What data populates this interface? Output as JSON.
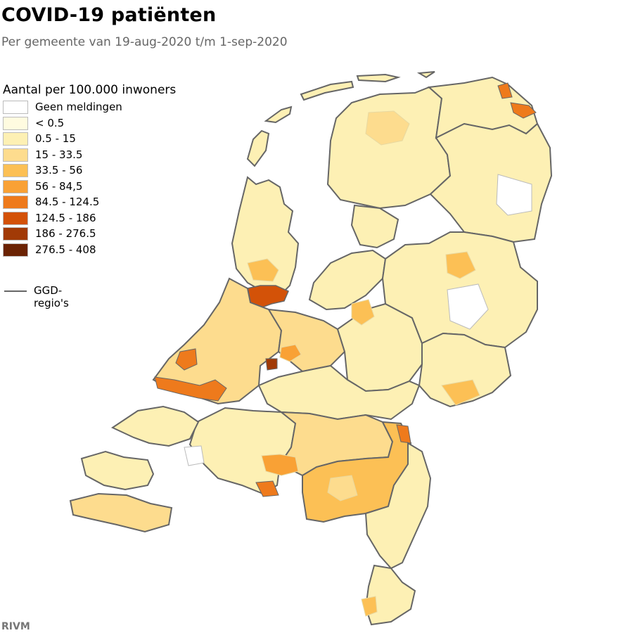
{
  "header": {
    "title": "COVID-19 patiënten",
    "subtitle": "Per gemeente van 19-aug-2020 t/m 1-sep-2020"
  },
  "legend": {
    "title": "Aantal per 100.000 inwoners",
    "items": [
      {
        "label": "Geen meldingen",
        "color": "#ffffff"
      },
      {
        "label": "< 0.5",
        "color": "#fffbe0"
      },
      {
        "label": "0.5 - 15",
        "color": "#fdf0b4"
      },
      {
        "label": "15 - 33.5",
        "color": "#fddc8e"
      },
      {
        "label": "33.5 - 56",
        "color": "#fcc055"
      },
      {
        "label": "56 - 84,5",
        "color": "#f9a135"
      },
      {
        "label": "84.5 - 124.5",
        "color": "#ee7a1c"
      },
      {
        "label": "124.5 - 186",
        "color": "#d35208"
      },
      {
        "label": "186 - 276.5",
        "color": "#a13a06"
      },
      {
        "label": "276.5 - 408",
        "color": "#6b2304"
      }
    ],
    "boundary_label": "GGD-regio's",
    "boundary_color": "#666666"
  },
  "source": "RIVM"
}
